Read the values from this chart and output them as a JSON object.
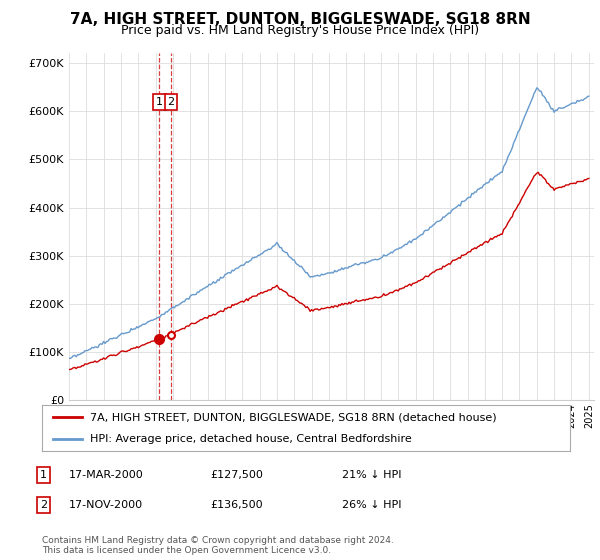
{
  "title": "7A, HIGH STREET, DUNTON, BIGGLESWADE, SG18 8RN",
  "subtitle": "Price paid vs. HM Land Registry's House Price Index (HPI)",
  "legend_entry1": "7A, HIGH STREET, DUNTON, BIGGLESWADE, SG18 8RN (detached house)",
  "legend_entry2": "HPI: Average price, detached house, Central Bedfordshire",
  "annotation1_date": "17-MAR-2000",
  "annotation1_price": "£127,500",
  "annotation1_pct": "21% ↓ HPI",
  "annotation2_date": "17-NOV-2000",
  "annotation2_price": "£136,500",
  "annotation2_pct": "26% ↓ HPI",
  "footer": "Contains HM Land Registry data © Crown copyright and database right 2024.\nThis data is licensed under the Open Government Licence v3.0.",
  "red_color": "#cc0000",
  "blue_color": "#6699cc",
  "sale1_x": 2000.21,
  "sale2_x": 2000.88,
  "sale1_price": 127500,
  "sale2_price": 136500,
  "ylim_min": 0,
  "ylim_max": 720000,
  "xlim_min": 1995,
  "xlim_max": 2025.3
}
